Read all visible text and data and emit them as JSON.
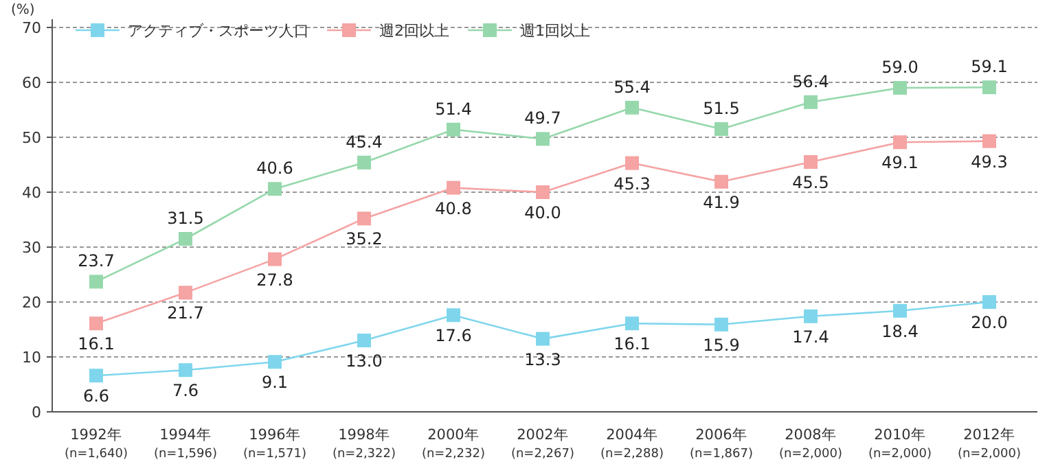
{
  "chart_data": {
    "type": "line",
    "ylabel": "(%)",
    "categories": [
      "1992年\n(n=1,640)",
      "1994年\n(n=1,596)",
      "1996年\n(n=1,571)",
      "1998年\n(n=2,322)",
      "2000年\n(n=2,232)",
      "2002年\n(n=2,267)",
      "2004年\n(n=2,288)",
      "2006年\n(n=1,867)",
      "2008年\n(n=2,000)",
      "2010年\n(n=2,000)",
      "2012年\n(n=2,000)"
    ],
    "series": [
      {
        "name": "アクティブ・スポーツ人口",
        "color": "#7fd6ec",
        "values": [
          6.6,
          7.6,
          9.1,
          13.0,
          17.6,
          13.3,
          16.1,
          15.9,
          17.4,
          18.4,
          20.0
        ],
        "value_labels": [
          "6.6",
          "7.6",
          "9.1",
          "13.0",
          "17.6",
          "13.3",
          "16.1",
          "15.9",
          "17.4",
          "18.4",
          "20.0"
        ]
      },
      {
        "name": "週2回以上",
        "color": "#f5a3a3",
        "values": [
          16.1,
          21.7,
          27.8,
          35.2,
          40.8,
          40.0,
          45.3,
          41.9,
          45.5,
          49.1,
          49.3
        ],
        "value_labels": [
          "16.1",
          "21.7",
          "27.8",
          "35.2",
          "40.8",
          "40.0",
          "45.3",
          "41.9",
          "45.5",
          "49.1",
          "49.3"
        ]
      },
      {
        "name": "週1回以上",
        "color": "#96d8ac",
        "values": [
          23.7,
          31.5,
          40.6,
          45.4,
          51.4,
          49.7,
          55.4,
          51.5,
          56.4,
          59.0,
          59.1
        ],
        "value_labels": [
          "23.7",
          "31.5",
          "40.6",
          "45.4",
          "51.4",
          "49.7",
          "55.4",
          "51.5",
          "56.4",
          "59.0",
          "59.1"
        ]
      }
    ],
    "ylim": [
      0,
      70
    ],
    "yticks": [
      0,
      10,
      20,
      30,
      40,
      50,
      60,
      70
    ],
    "grid": "y",
    "legend": "top left",
    "marker": "square",
    "line_style": "solid"
  }
}
